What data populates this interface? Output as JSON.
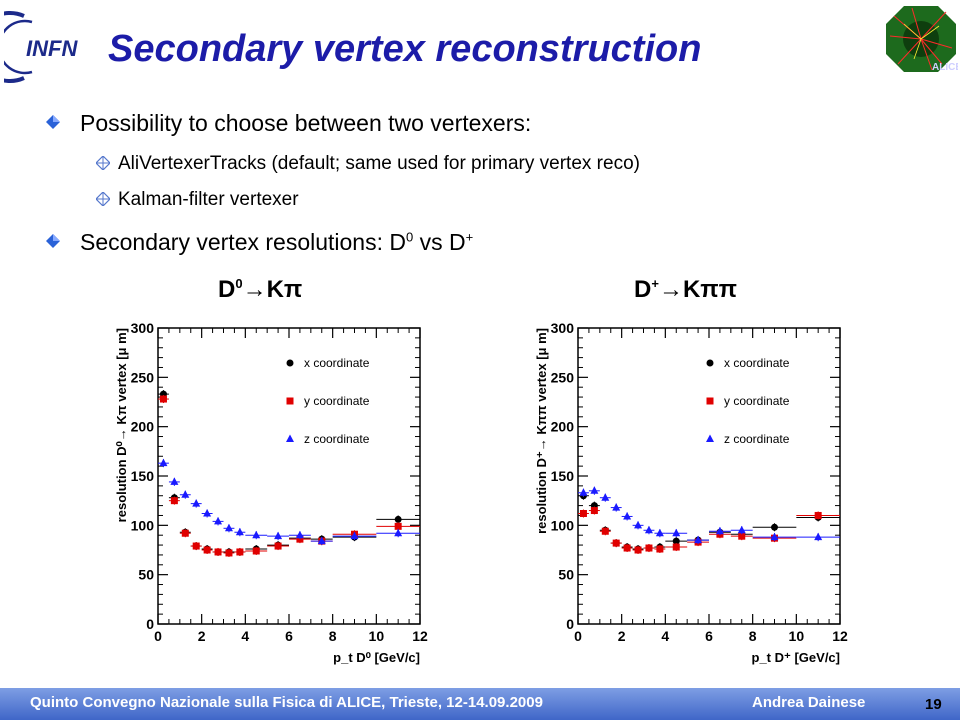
{
  "slide": {
    "title": "Secondary vertex reconstruction",
    "bullets": {
      "b1": "Possibility to choose between two vertexers:",
      "b1a": "AliVertexerTracks (default; same used for primary vertex reco)",
      "b1b": "Kalman-filter vertexer",
      "b2_text": "Secondary vertex resolutions: D",
      "b2_sup1": "0",
      "b2_mid": " vs D",
      "b2_sup2": "+"
    },
    "decay_left": {
      "d": "D",
      "sup": "0",
      "arrow": "→",
      "products": "Kπ"
    },
    "decay_right": {
      "d": "D",
      "sup": "+",
      "arrow": "→",
      "products": "Kππ"
    },
    "footer": {
      "left": "Quinto Convegno Nazionale sulla Fisica di ALICE, Trieste, 12-14.09.2009",
      "author": "Andrea Dainese",
      "page": "19"
    },
    "colors": {
      "title": "#1c1ca8",
      "series_x": "#000000",
      "series_y": "#e00000",
      "series_z": "#1a1aff",
      "footer": "#4a6fcf"
    }
  },
  "chart_data": [
    {
      "type": "scatter",
      "ylabel": "resolution D⁰→ Kπ vertex [μ m]",
      "xlabel": "p_t D⁰ [GeV/c]",
      "xlim": [
        0,
        12
      ],
      "ylim": [
        0,
        300
      ],
      "xticks": [
        "0",
        "2",
        "4",
        "6",
        "8",
        "10",
        "12"
      ],
      "yticks": [
        "0",
        "50",
        "100",
        "150",
        "200",
        "250",
        "300"
      ],
      "legend_placement": "top-right",
      "series": [
        {
          "name": "x coordinate",
          "marker": "circle",
          "x": [
            0.25,
            0.75,
            1.25,
            1.75,
            2.25,
            2.75,
            3.25,
            3.75,
            4.5,
            5.5,
            6.5,
            7.5,
            9.0,
            11.0
          ],
          "y": [
            233,
            128,
            93,
            79,
            76,
            73,
            73,
            73,
            76,
            80,
            87,
            86,
            88,
            106
          ]
        },
        {
          "name": "y coordinate",
          "marker": "square",
          "x": [
            0.25,
            0.75,
            1.25,
            1.75,
            2.25,
            2.75,
            3.25,
            3.75,
            4.5,
            5.5,
            6.5,
            7.5,
            9.0,
            11.0
          ],
          "y": [
            228,
            125,
            92,
            79,
            75,
            73,
            72,
            73,
            74,
            79,
            86,
            84,
            91,
            99
          ]
        },
        {
          "name": "z coordinate",
          "marker": "triangle",
          "x": [
            0.25,
            0.75,
            1.25,
            1.75,
            2.25,
            2.75,
            3.25,
            3.75,
            4.5,
            5.5,
            6.5,
            7.5,
            9.0,
            11.0
          ],
          "y": [
            163,
            144,
            131,
            122,
            112,
            104,
            97,
            93,
            90,
            89,
            90,
            84,
            89,
            92
          ]
        }
      ]
    },
    {
      "type": "scatter",
      "ylabel": "resolution D⁺→ Kππ vertex [μ m]",
      "xlabel": "p_t D⁺ [GeV/c]",
      "xlim": [
        0,
        12
      ],
      "ylim": [
        0,
        300
      ],
      "xticks": [
        "0",
        "2",
        "4",
        "6",
        "8",
        "10",
        "12"
      ],
      "yticks": [
        "0",
        "50",
        "100",
        "150",
        "200",
        "250",
        "300"
      ],
      "legend_placement": "top-right",
      "series": [
        {
          "name": "x coordinate",
          "marker": "circle",
          "x": [
            0.25,
            0.75,
            1.25,
            1.75,
            2.25,
            2.75,
            3.25,
            3.75,
            4.5,
            5.5,
            6.5,
            7.5,
            9.0,
            11.0
          ],
          "y": [
            130,
            120,
            95,
            82,
            78,
            76,
            77,
            78,
            84,
            85,
            93,
            91,
            98,
            108
          ]
        },
        {
          "name": "y coordinate",
          "marker": "square",
          "x": [
            0.25,
            0.75,
            1.25,
            1.75,
            2.25,
            2.75,
            3.25,
            3.75,
            4.5,
            5.5,
            6.5,
            7.5,
            9.0,
            11.0
          ],
          "y": [
            112,
            115,
            94,
            82,
            77,
            75,
            77,
            76,
            78,
            83,
            91,
            89,
            87,
            110
          ]
        },
        {
          "name": "z coordinate",
          "marker": "triangle",
          "x": [
            0.25,
            0.75,
            1.25,
            1.75,
            2.25,
            2.75,
            3.25,
            3.75,
            4.5,
            5.5,
            6.5,
            7.5,
            9.0,
            11.0
          ],
          "y": [
            133,
            135,
            128,
            118,
            109,
            100,
            95,
            92,
            92,
            85,
            94,
            95,
            88,
            88
          ]
        }
      ]
    }
  ]
}
